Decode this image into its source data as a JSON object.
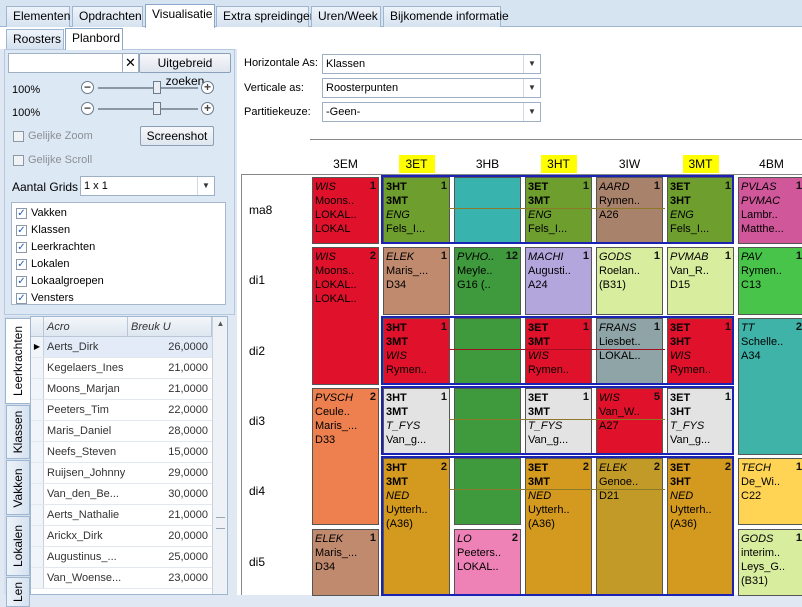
{
  "main_tabs": [
    "Elementen",
    "Opdrachten",
    "Visualisatie",
    "Extra spreidingen",
    "Uren/Week",
    "Bijkomende informatie"
  ],
  "sub_tabs": [
    "Roosters",
    "Planbord"
  ],
  "left": {
    "search_value": "",
    "clear_symbol": "✕",
    "advanced_search": "Uitgebreid zoeken",
    "zoom_h": "100%",
    "zoom_v": "100%",
    "zoom_h_fraction": 0.6,
    "zoom_v_fraction": 0.6,
    "same_zoom": "Gelijke Zoom",
    "screenshot": "Screenshot",
    "same_scroll": "Gelijke Scroll",
    "grid_count_label": "Aantal Grids",
    "grid_count_value": "1 x 1",
    "checks": [
      "Vakken",
      "Klassen",
      "Leerkrachten",
      "Lokalen",
      "Lokaalgroepen",
      "Vensters"
    ],
    "side_tabs": [
      "Leerkrachten",
      "Klassen",
      "Vakken",
      "Lokalen",
      "Len"
    ],
    "grid_headers": [
      "Acro",
      "Breuk U"
    ],
    "grid_rows": [
      {
        "acro": "Aerts_Dirk",
        "breuk": "26,0000"
      },
      {
        "acro": "Kegelaers_Ines",
        "breuk": "21,0000"
      },
      {
        "acro": "Moons_Marjan",
        "breuk": "21,0000"
      },
      {
        "acro": "Peeters_Tim",
        "breuk": "22,0000"
      },
      {
        "acro": "Maris_Daniel",
        "breuk": "28,0000"
      },
      {
        "acro": "Neefs_Steven",
        "breuk": "15,0000"
      },
      {
        "acro": "Ruijsen_Johnny",
        "breuk": "29,0000"
      },
      {
        "acro": "Van_den_Be...",
        "breuk": "30,0000"
      },
      {
        "acro": "Aerts_Nathalie",
        "breuk": "21,0000"
      },
      {
        "acro": "Arickx_Dirk",
        "breuk": "20,0000"
      },
      {
        "acro": "Augustinus_...",
        "breuk": "25,0000"
      },
      {
        "acro": "Van_Woense...",
        "breuk": "23,0000"
      }
    ]
  },
  "fields": {
    "horizontal_label": "Horizontale As:",
    "horizontal_value": "Klassen",
    "vertical_label": "Verticale as:",
    "vertical_value": "Roosterpunten",
    "partition_label": "Partitiekeuze:",
    "partition_value": "-Geen-"
  },
  "columns": [
    "3EM",
    "3ET",
    "3HB",
    "3HT",
    "3IW",
    "3MT",
    "4BM"
  ],
  "highlighted_columns": [
    "3ET",
    "3HT",
    "3MT"
  ],
  "days": [
    "ma8",
    "di1",
    "di2",
    "di3",
    "di4",
    "di5"
  ],
  "colors": {
    "accent_highlight": "#ffff00",
    "group_border": "#1a23b4"
  },
  "cells": [
    {
      "id": "c-3em-ma8",
      "col": 0,
      "row": 0,
      "span": 1,
      "color": "#e0112b",
      "num": "1",
      "lines": [
        [
          "WIS",
          "i"
        ],
        [
          "Moons..",
          ""
        ],
        [
          "LOKAL..",
          ""
        ],
        [
          "LOKAL",
          ""
        ]
      ]
    },
    {
      "id": "c-3et-ma8",
      "col": 1,
      "row": 0,
      "span": 1,
      "color": "#6e9e2e",
      "num": "1",
      "lines": [
        [
          "3HT",
          "b"
        ],
        [
          "3MT",
          "b"
        ],
        [
          "ENG",
          "i"
        ],
        [
          "Fels_I...",
          ""
        ]
      ]
    },
    {
      "id": "c-3hb-ma8",
      "col": 2,
      "row": 0,
      "span": 1,
      "color": "#39b3ad",
      "num": "",
      "lines": []
    },
    {
      "id": "c-3ht-ma8",
      "col": 3,
      "row": 0,
      "span": 1,
      "color": "#6e9e2e",
      "num": "1",
      "lines": [
        [
          "3ET",
          "b"
        ],
        [
          "3MT",
          "b"
        ],
        [
          "ENG",
          "i"
        ],
        [
          "Fels_I...",
          ""
        ]
      ]
    },
    {
      "id": "c-3iw-ma8",
      "col": 4,
      "row": 0,
      "span": 1,
      "color": "#a9826b",
      "num": "1",
      "lines": [
        [
          "AARD",
          "i"
        ],
        [
          "Rymen..",
          ""
        ],
        [
          "A26",
          ""
        ]
      ]
    },
    {
      "id": "c-3mt-ma8",
      "col": 5,
      "row": 0,
      "span": 1,
      "color": "#6e9e2e",
      "num": "1",
      "lines": [
        [
          "3ET",
          "b"
        ],
        [
          "3HT",
          "b"
        ],
        [
          "ENG",
          "i"
        ],
        [
          "Fels_I...",
          ""
        ]
      ]
    },
    {
      "id": "c-4bm-ma8",
      "col": 6,
      "row": 0,
      "span": 1,
      "color": "#d1579b",
      "num": "1",
      "lines": [
        [
          "PVLAS",
          "i"
        ],
        [
          "PVMAC",
          "i"
        ],
        [
          "Lambr..",
          ""
        ],
        [
          "Matthe...",
          ""
        ]
      ]
    },
    {
      "id": "c-3em-di1",
      "col": 0,
      "row": 1,
      "span": 2,
      "color": "#e0112b",
      "num": "2",
      "lines": [
        [
          "WIS",
          "i"
        ],
        [
          "Moons..",
          ""
        ],
        [
          "LOKAL..",
          ""
        ],
        [
          "LOKAL..",
          ""
        ]
      ]
    },
    {
      "id": "c-3et-di1",
      "col": 1,
      "row": 1,
      "span": 1,
      "color": "#c08a6e",
      "num": "1",
      "lines": [
        [
          "ELEK",
          "i"
        ],
        [
          "Maris_...",
          ""
        ],
        [
          "D34",
          ""
        ]
      ]
    },
    {
      "id": "c-3hb-di1",
      "col": 2,
      "row": 1,
      "span": 1,
      "color": "#3e9a3c",
      "num": "12",
      "lines": [
        [
          "PVHO..",
          "i"
        ],
        [
          "Meyle..",
          ""
        ],
        [
          "G16 (..",
          ""
        ]
      ]
    },
    {
      "id": "c-3ht-di1",
      "col": 3,
      "row": 1,
      "span": 1,
      "color": "#b2a6dd",
      "num": "1",
      "lines": [
        [
          "MACHI",
          "i"
        ],
        [
          "Augusti..",
          ""
        ],
        [
          "A24",
          ""
        ]
      ]
    },
    {
      "id": "c-3iw-di1",
      "col": 4,
      "row": 1,
      "span": 1,
      "color": "#d9ed9f",
      "num": "1",
      "lines": [
        [
          "GODS",
          "i"
        ],
        [
          "Roelan..",
          ""
        ],
        [
          "(B31)",
          ""
        ]
      ]
    },
    {
      "id": "c-3mt-di1",
      "col": 5,
      "row": 1,
      "span": 1,
      "color": "#d9ed9f",
      "num": "1",
      "lines": [
        [
          "PVMAB",
          "i"
        ],
        [
          "Van_R..",
          ""
        ],
        [
          "D15",
          ""
        ]
      ]
    },
    {
      "id": "c-4bm-di1",
      "col": 6,
      "row": 1,
      "span": 1,
      "color": "#48c44a",
      "num": "1",
      "lines": [
        [
          "PAV",
          "i"
        ],
        [
          "Rymen..",
          ""
        ],
        [
          "C13",
          ""
        ]
      ]
    },
    {
      "id": "c-3et-di2",
      "col": 1,
      "row": 2,
      "span": 1,
      "color": "#e0112b",
      "num": "1",
      "lines": [
        [
          "3HT",
          "b"
        ],
        [
          "3MT",
          "b"
        ],
        [
          "WIS",
          "i"
        ],
        [
          "Rymen..",
          ""
        ]
      ]
    },
    {
      "id": "c-3hb-di2",
      "col": 2,
      "row": 2,
      "span": 1,
      "color": "#3e9a3c",
      "num": "",
      "lines": []
    },
    {
      "id": "c-3ht-di2",
      "col": 3,
      "row": 2,
      "span": 1,
      "color": "#e0112b",
      "num": "1",
      "lines": [
        [
          "3ET",
          "b"
        ],
        [
          "3MT",
          "b"
        ],
        [
          "WIS",
          "i"
        ],
        [
          "Rymen..",
          ""
        ]
      ]
    },
    {
      "id": "c-3iw-di2",
      "col": 4,
      "row": 2,
      "span": 1,
      "color": "#8fa4a6",
      "num": "1",
      "lines": [
        [
          "FRANS",
          "i"
        ],
        [
          "Liesbet..",
          ""
        ],
        [
          "LOKAL..",
          ""
        ]
      ]
    },
    {
      "id": "c-3mt-di2",
      "col": 5,
      "row": 2,
      "span": 1,
      "color": "#e0112b",
      "num": "1",
      "lines": [
        [
          "3ET",
          "b"
        ],
        [
          "3HT",
          "b"
        ],
        [
          "WIS",
          "i"
        ],
        [
          "Rymen..",
          ""
        ]
      ]
    },
    {
      "id": "c-4bm-di2",
      "col": 6,
      "row": 2,
      "span": 2,
      "color": "#3fb3a8",
      "num": "2",
      "lines": [
        [
          "TT",
          "i"
        ],
        [
          "Schelle..",
          ""
        ],
        [
          "A34",
          ""
        ]
      ]
    },
    {
      "id": "c-3em-di3",
      "col": 0,
      "row": 3,
      "span": 2,
      "color": "#ee8050",
      "num": "2",
      "lines": [
        [
          "PVSCH",
          "i"
        ],
        [
          "Ceule..",
          ""
        ],
        [
          "Maris_...",
          ""
        ],
        [
          "D33",
          ""
        ]
      ]
    },
    {
      "id": "c-3et-di3",
      "col": 1,
      "row": 3,
      "span": 1,
      "color": "#e3e3e3",
      "num": "1",
      "lines": [
        [
          "3HT",
          "b"
        ],
        [
          "3MT",
          "b"
        ],
        [
          "T_FYS",
          "i"
        ],
        [
          "Van_g...",
          ""
        ]
      ]
    },
    {
      "id": "c-3hb-di3",
      "col": 2,
      "row": 3,
      "span": 1,
      "color": "#3e9a3c",
      "num": "",
      "lines": []
    },
    {
      "id": "c-3ht-di3",
      "col": 3,
      "row": 3,
      "span": 1,
      "color": "#e3e3e3",
      "num": "1",
      "lines": [
        [
          "3ET",
          "b"
        ],
        [
          "3MT",
          "b"
        ],
        [
          "T_FYS",
          "i"
        ],
        [
          "Van_g...",
          ""
        ]
      ]
    },
    {
      "id": "c-3iw-di3",
      "col": 4,
      "row": 3,
      "span": 1,
      "color": "#e0112b",
      "num": "5",
      "lines": [
        [
          "WIS",
          "i"
        ],
        [
          "Van_W..",
          ""
        ],
        [
          "A27",
          ""
        ]
      ]
    },
    {
      "id": "c-3mt-di3",
      "col": 5,
      "row": 3,
      "span": 1,
      "color": "#e3e3e3",
      "num": "1",
      "lines": [
        [
          "3ET",
          "b"
        ],
        [
          "3HT",
          "b"
        ],
        [
          "T_FYS",
          "i"
        ],
        [
          "Van_g...",
          ""
        ]
      ]
    },
    {
      "id": "c-3et-di4",
      "col": 1,
      "row": 4,
      "span": 2,
      "color": "#d4991f",
      "num": "2",
      "lines": [
        [
          "3HT",
          "b"
        ],
        [
          "3MT",
          "b"
        ],
        [
          "NED",
          "i"
        ],
        [
          "Uytterh..",
          ""
        ],
        [
          "(A36)",
          ""
        ]
      ]
    },
    {
      "id": "c-3hb-di4",
      "col": 2,
      "row": 4,
      "span": 1,
      "color": "#3e9a3c",
      "num": "",
      "lines": []
    },
    {
      "id": "c-3ht-di4",
      "col": 3,
      "row": 4,
      "span": 2,
      "color": "#d4991f",
      "num": "2",
      "lines": [
        [
          "3ET",
          "b"
        ],
        [
          "3MT",
          "b"
        ],
        [
          "NED",
          "i"
        ],
        [
          "Uytterh..",
          ""
        ],
        [
          "(A36)",
          ""
        ]
      ]
    },
    {
      "id": "c-3iw-di4",
      "col": 4,
      "row": 4,
      "span": 2,
      "color": "#c29a28",
      "num": "2",
      "lines": [
        [
          "ELEK",
          "i"
        ],
        [
          "Genoe..",
          ""
        ],
        [
          "D21",
          ""
        ]
      ]
    },
    {
      "id": "c-3mt-di4",
      "col": 5,
      "row": 4,
      "span": 2,
      "color": "#d4991f",
      "num": "2",
      "lines": [
        [
          "3ET",
          "b"
        ],
        [
          "3HT",
          "b"
        ],
        [
          "NED",
          "i"
        ],
        [
          "Uytterh..",
          ""
        ],
        [
          "(A36)",
          ""
        ]
      ]
    },
    {
      "id": "c-4bm-di4",
      "col": 6,
      "row": 4,
      "span": 1,
      "color": "#ffd455",
      "num": "1",
      "lines": [
        [
          "TECH",
          "i"
        ],
        [
          "De_Wi..",
          ""
        ],
        [
          "C22",
          ""
        ]
      ]
    },
    {
      "id": "c-3em-di5",
      "col": 0,
      "row": 5,
      "span": 1,
      "color": "#c08a6e",
      "num": "1",
      "lines": [
        [
          "ELEK",
          "i"
        ],
        [
          "Maris_...",
          ""
        ],
        [
          "D34",
          ""
        ]
      ]
    },
    {
      "id": "c-3hb-di5",
      "col": 2,
      "row": 5,
      "span": 1,
      "color": "#ee82b7",
      "num": "2",
      "lines": [
        [
          "LO",
          "i"
        ],
        [
          "Peeters..",
          ""
        ],
        [
          "LOKAL..",
          ""
        ]
      ]
    },
    {
      "id": "c-4bm-di5",
      "col": 6,
      "row": 5,
      "span": 1,
      "color": "#d9ed9f",
      "num": "1",
      "lines": [
        [
          "GODS",
          "i"
        ],
        [
          "interim..",
          ""
        ],
        [
          "Leys_G..",
          ""
        ],
        [
          "(B31)",
          ""
        ]
      ]
    }
  ],
  "groups": [
    {
      "id": "grp-ma8",
      "row": 0,
      "span": 1
    },
    {
      "id": "grp-di2",
      "row": 2,
      "span": 1
    },
    {
      "id": "grp-di3",
      "row": 3,
      "span": 1
    },
    {
      "id": "grp-di4",
      "row": 4,
      "span": 2
    }
  ]
}
